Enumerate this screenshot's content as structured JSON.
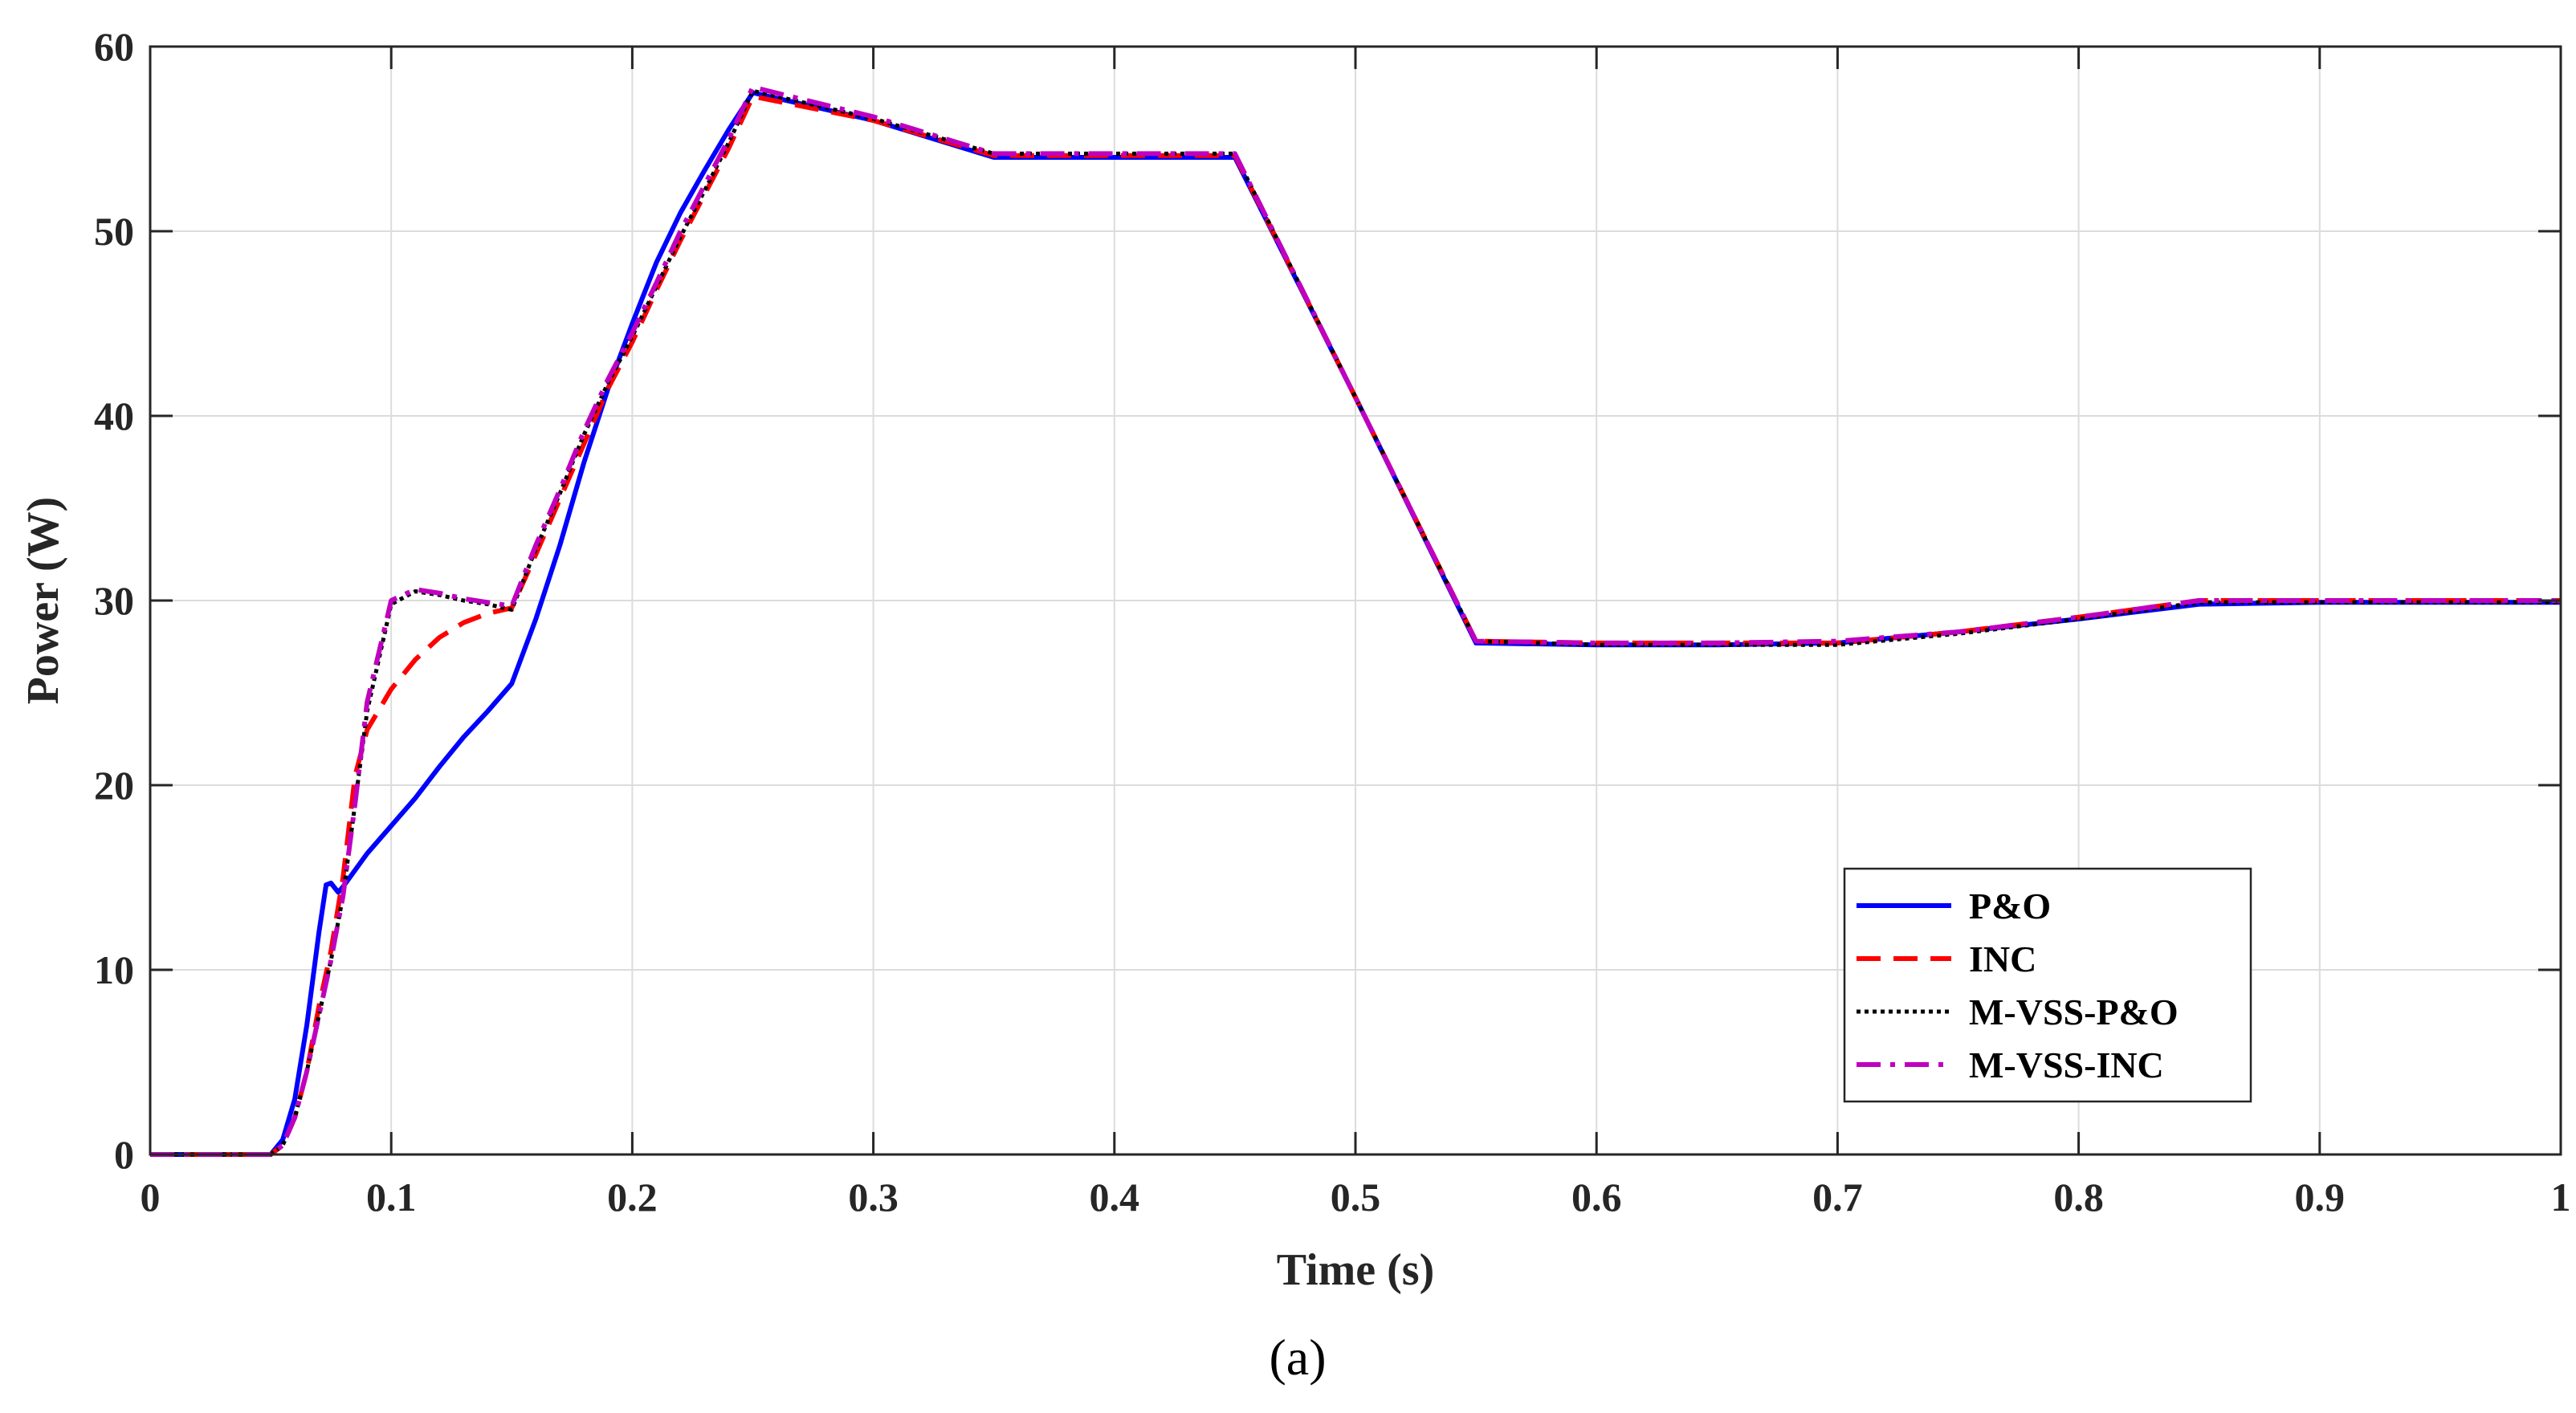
{
  "chart_data": {
    "type": "line",
    "xlabel": "Time (s)",
    "ylabel": "Power (W)",
    "panel_label": "(a)",
    "xlim": [
      0,
      1
    ],
    "ylim": [
      0,
      60
    ],
    "xticks": [
      0,
      0.1,
      0.2,
      0.3,
      0.4,
      0.5,
      0.6,
      0.7,
      0.8,
      0.9,
      1
    ],
    "xtick_labels": [
      "0",
      "0.1",
      "0.2",
      "0.3",
      "0.4",
      "0.5",
      "0.6",
      "0.7",
      "0.8",
      "0.9",
      "1"
    ],
    "yticks": [
      0,
      10,
      20,
      30,
      40,
      50,
      60
    ],
    "ytick_labels": [
      "0",
      "10",
      "20",
      "30",
      "40",
      "50",
      "60"
    ],
    "grid": true,
    "legend_position": "bottom-right",
    "series": [
      {
        "name": "P&O",
        "color": "#0000ff",
        "dash": "solid",
        "x": [
          0,
          0.05,
          0.055,
          0.06,
          0.065,
          0.07,
          0.073,
          0.075,
          0.078,
          0.08,
          0.09,
          0.1,
          0.11,
          0.12,
          0.13,
          0.14,
          0.15,
          0.16,
          0.17,
          0.18,
          0.19,
          0.2,
          0.21,
          0.22,
          0.23,
          0.24,
          0.25,
          0.3,
          0.35,
          0.4,
          0.45,
          0.5,
          0.55,
          0.6,
          0.65,
          0.7,
          0.75,
          0.8,
          0.85,
          0.9,
          0.95,
          1.0
        ],
        "y": [
          0,
          0,
          0.8,
          3,
          7,
          12,
          14.6,
          14.7,
          14.2,
          14.5,
          16.3,
          17.8,
          19.3,
          21,
          22.6,
          24,
          25.5,
          29,
          33,
          37.5,
          41.5,
          45,
          48.3,
          51,
          53.3,
          55.5,
          57.5,
          56,
          54,
          54,
          54,
          41,
          27.7,
          27.6,
          27.6,
          27.7,
          28.3,
          29,
          29.8,
          29.9,
          29.9,
          29.9
        ]
      },
      {
        "name": "INC",
        "color": "#ff0000",
        "dash": "dashed",
        "x": [
          0,
          0.05,
          0.055,
          0.06,
          0.065,
          0.07,
          0.075,
          0.08,
          0.085,
          0.09,
          0.1,
          0.11,
          0.12,
          0.13,
          0.14,
          0.15,
          0.16,
          0.17,
          0.18,
          0.19,
          0.2,
          0.21,
          0.22,
          0.23,
          0.24,
          0.25,
          0.3,
          0.35,
          0.4,
          0.45,
          0.5,
          0.55,
          0.6,
          0.65,
          0.7,
          0.75,
          0.8,
          0.85,
          0.9,
          0.95,
          1.0
        ],
        "y": [
          0,
          0,
          0.5,
          2,
          4.5,
          8,
          11,
          15,
          20.5,
          23,
          25.2,
          26.8,
          28,
          28.8,
          29.3,
          29.6,
          32.5,
          35.5,
          38.5,
          41.5,
          44,
          46.8,
          49.5,
          52,
          54.5,
          57.3,
          56,
          54.1,
          54.1,
          54.1,
          41,
          27.8,
          27.7,
          27.7,
          27.7,
          28.3,
          29.1,
          30,
          30,
          30,
          30
        ]
      },
      {
        "name": "M-VSS-P&O",
        "color": "#000000",
        "dash": "dotted",
        "x": [
          0,
          0.05,
          0.055,
          0.06,
          0.065,
          0.07,
          0.075,
          0.08,
          0.085,
          0.09,
          0.1,
          0.11,
          0.12,
          0.13,
          0.14,
          0.15,
          0.16,
          0.17,
          0.18,
          0.19,
          0.2,
          0.21,
          0.22,
          0.23,
          0.24,
          0.25,
          0.3,
          0.35,
          0.4,
          0.45,
          0.5,
          0.55,
          0.6,
          0.65,
          0.7,
          0.75,
          0.8,
          0.85,
          0.9,
          0.95,
          1.0
        ],
        "y": [
          0,
          0,
          0.5,
          2,
          4.5,
          7.5,
          10.5,
          14,
          19,
          24,
          29.8,
          30.5,
          30.3,
          30,
          29.8,
          29.5,
          32.8,
          35.8,
          39,
          41.8,
          44.3,
          47,
          49.7,
          52.2,
          54.8,
          57.6,
          56.1,
          54.2,
          54.2,
          54.2,
          41,
          27.8,
          27.6,
          27.6,
          27.6,
          28.2,
          29,
          29.9,
          29.9,
          29.9,
          29.9
        ]
      },
      {
        "name": "M-VSS-INC",
        "color": "#bf00bf",
        "dash": "dashdot",
        "x": [
          0,
          0.05,
          0.055,
          0.06,
          0.065,
          0.07,
          0.075,
          0.08,
          0.085,
          0.09,
          0.1,
          0.11,
          0.12,
          0.13,
          0.14,
          0.15,
          0.16,
          0.17,
          0.18,
          0.19,
          0.2,
          0.21,
          0.22,
          0.23,
          0.24,
          0.25,
          0.3,
          0.35,
          0.4,
          0.45,
          0.5,
          0.55,
          0.6,
          0.65,
          0.7,
          0.75,
          0.8,
          0.85,
          0.9,
          0.95,
          1.0
        ],
        "y": [
          0,
          0,
          0.5,
          2,
          4.5,
          7.5,
          10.5,
          14,
          19,
          24.5,
          30,
          30.6,
          30.4,
          30.1,
          29.9,
          29.7,
          33,
          36,
          39.2,
          42,
          44.5,
          47.2,
          50,
          52.5,
          55,
          57.8,
          56.2,
          54.2,
          54.2,
          54.2,
          41,
          27.8,
          27.7,
          27.7,
          27.8,
          28.3,
          29.1,
          30,
          30,
          30,
          30
        ]
      }
    ]
  }
}
